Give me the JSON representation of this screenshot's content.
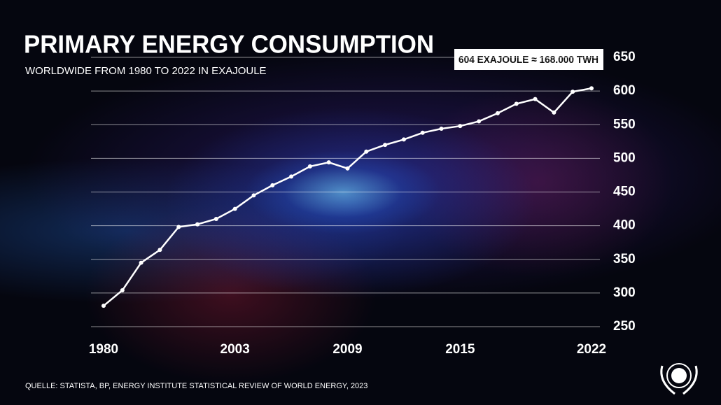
{
  "chart_data": {
    "type": "line",
    "title": "PRIMARY ENERGY CONSUMPTION",
    "subtitle": "WORLDWIDE FROM 1980 TO 2022 IN EXAJOULE",
    "annotation": "604 EXAJOULE ≈ 168.000 TWH",
    "source": "QUELLE: STATISTA, BP, ENERGY INSTITUTE STATISTICAL REVIEW OF WORLD ENERGY, 2023",
    "categories": [
      "1980",
      null,
      null,
      null,
      null,
      null,
      null,
      "2003",
      null,
      null,
      null,
      null,
      null,
      "2009",
      null,
      null,
      null,
      null,
      null,
      "2015",
      null,
      null,
      null,
      null,
      null,
      null,
      "2022"
    ],
    "series": [
      {
        "name": "Primary energy consumption",
        "color": "#ffffff",
        "values": [
          281,
          304,
          345,
          364,
          398,
          402,
          410,
          425,
          445,
          460,
          473,
          488,
          494,
          485,
          510,
          520,
          528,
          538,
          544,
          548,
          555,
          567,
          581,
          588,
          568,
          599,
          604
        ]
      }
    ],
    "ylim": [
      250,
      650
    ],
    "yticks": [
      250,
      300,
      350,
      400,
      450,
      500,
      550,
      600,
      650
    ],
    "grid": true
  }
}
